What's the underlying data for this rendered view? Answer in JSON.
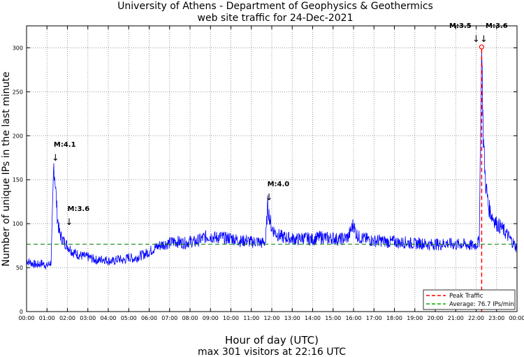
{
  "chart_data": {
    "type": "line",
    "title": [
      "University of Athens - Department of Geophysics & Geothermics",
      "web site traffic for 24-Dec-2021"
    ],
    "xlabel": "Hour of day (UTC)",
    "subtitle": "max 301 visitors at 22:16 UTC",
    "ylabel": "Number of unique IPs in the last minute",
    "xlim": [
      0,
      24
    ],
    "ylim": [
      0,
      325
    ],
    "grid": true,
    "x_ticks": [
      "00:00",
      "01:00",
      "02:00",
      "03:00",
      "04:00",
      "05:00",
      "06:00",
      "07:00",
      "08:00",
      "09:00",
      "10:00",
      "11:00",
      "12:00",
      "13:00",
      "14:00",
      "15:00",
      "16:00",
      "17:00",
      "18:00",
      "19:00",
      "20:00",
      "21:00",
      "22:00",
      "23:00",
      "00:00"
    ],
    "y_ticks": [
      0,
      50,
      100,
      150,
      200,
      250,
      300
    ],
    "series": [
      {
        "name": "traffic",
        "color": "#0000ff",
        "points": [
          [
            0,
            58
          ],
          [
            0.25,
            55
          ],
          [
            0.5,
            53
          ],
          [
            0.75,
            55
          ],
          [
            1,
            52
          ],
          [
            1.2,
            56
          ],
          [
            1.28,
            120
          ],
          [
            1.33,
            168
          ],
          [
            1.4,
            150
          ],
          [
            1.5,
            110
          ],
          [
            1.6,
            90
          ],
          [
            1.75,
            82
          ],
          [
            2,
            75
          ],
          [
            2.25,
            68
          ],
          [
            2.5,
            65
          ],
          [
            2.75,
            63
          ],
          [
            3,
            62
          ],
          [
            3.25,
            60
          ],
          [
            3.5,
            58
          ],
          [
            3.75,
            60
          ],
          [
            4,
            58
          ],
          [
            4.25,
            57
          ],
          [
            4.5,
            60
          ],
          [
            4.75,
            58
          ],
          [
            5,
            62
          ],
          [
            5.25,
            60
          ],
          [
            5.5,
            63
          ],
          [
            5.75,
            65
          ],
          [
            6,
            68
          ],
          [
            6.25,
            72
          ],
          [
            6.5,
            75
          ],
          [
            6.75,
            77
          ],
          [
            7,
            78
          ],
          [
            7.25,
            80
          ],
          [
            7.5,
            79
          ],
          [
            7.75,
            78
          ],
          [
            8,
            80
          ],
          [
            8.25,
            79
          ],
          [
            8.5,
            82
          ],
          [
            8.75,
            85
          ],
          [
            9,
            86
          ],
          [
            9.25,
            84
          ],
          [
            9.5,
            85
          ],
          [
            9.75,
            83
          ],
          [
            10,
            84
          ],
          [
            10.25,
            82
          ],
          [
            10.5,
            80
          ],
          [
            10.75,
            81
          ],
          [
            11,
            79
          ],
          [
            11.25,
            80
          ],
          [
            11.5,
            78
          ],
          [
            11.7,
            80
          ],
          [
            11.8,
            122
          ],
          [
            11.9,
            105
          ],
          [
            12,
            95
          ],
          [
            12.25,
            88
          ],
          [
            12.5,
            85
          ],
          [
            12.75,
            84
          ],
          [
            13,
            83
          ],
          [
            13.25,
            82
          ],
          [
            13.5,
            84
          ],
          [
            13.75,
            83
          ],
          [
            14,
            82
          ],
          [
            14.25,
            84
          ],
          [
            14.5,
            85
          ],
          [
            14.75,
            83
          ],
          [
            15,
            84
          ],
          [
            15.25,
            82
          ],
          [
            15.5,
            83
          ],
          [
            15.75,
            85
          ],
          [
            16,
            100
          ],
          [
            16.1,
            90
          ],
          [
            16.25,
            85
          ],
          [
            16.5,
            83
          ],
          [
            16.75,
            82
          ],
          [
            17,
            80
          ],
          [
            17.25,
            81
          ],
          [
            17.5,
            80
          ],
          [
            17.75,
            79
          ],
          [
            18,
            80
          ],
          [
            18.25,
            78
          ],
          [
            18.5,
            79
          ],
          [
            18.75,
            78
          ],
          [
            19,
            77
          ],
          [
            19.25,
            78
          ],
          [
            19.5,
            77
          ],
          [
            19.75,
            76
          ],
          [
            20,
            77
          ],
          [
            20.25,
            76
          ],
          [
            20.5,
            78
          ],
          [
            20.75,
            77
          ],
          [
            21,
            76
          ],
          [
            21.25,
            77
          ],
          [
            21.5,
            76
          ],
          [
            21.75,
            75
          ],
          [
            22,
            76
          ],
          [
            22.15,
            80
          ],
          [
            22.27,
            301
          ],
          [
            22.35,
            200
          ],
          [
            22.45,
            150
          ],
          [
            22.6,
            120
          ],
          [
            22.75,
            110
          ],
          [
            23,
            100
          ],
          [
            23.25,
            95
          ],
          [
            23.5,
            88
          ],
          [
            23.75,
            80
          ],
          [
            24,
            72
          ]
        ]
      }
    ],
    "peak": {
      "x": 22.27,
      "y": 301,
      "color": "#ff0000"
    },
    "average": {
      "y": 76.7,
      "color": "#008000"
    },
    "legend": {
      "placement": "bottom-right",
      "entries": [
        "Peak Traffic",
        "Average: 76.7 IPs/min"
      ]
    },
    "annotations": [
      {
        "text": "M:4.1",
        "x": 1.33,
        "y": 170
      },
      {
        "text": "M:3.6",
        "x": 2.0,
        "y": 97
      },
      {
        "text": "M:4.0",
        "x": 11.78,
        "y": 125
      },
      {
        "text": "M:3.5",
        "x": 22.12,
        "y": 305
      },
      {
        "text": "M:3.6",
        "x": 22.12,
        "y": 305
      }
    ]
  }
}
